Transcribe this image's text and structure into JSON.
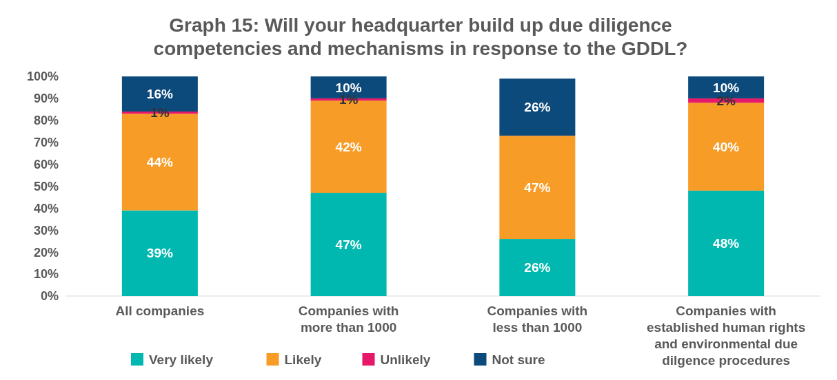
{
  "chart_data": {
    "type": "bar",
    "stacked": true,
    "title": "Graph 15: Will your headquarter build up due diligence competencies and mechanisms in response to the GDDL?",
    "categories": [
      "All companies",
      "Companies with\nmore than 1000",
      "Companies with\nless than 1000",
      "Companies with\nestablished human rights\nand environmental due\ndilgence procedures"
    ],
    "series": [
      {
        "name": "Very likely",
        "color": "#00b8b0",
        "values": [
          39,
          47,
          26,
          48
        ],
        "value_labels": [
          "39%",
          "47%",
          "26%",
          "48%"
        ]
      },
      {
        "name": "Likely",
        "color": "#f89c28",
        "values": [
          44,
          42,
          47,
          40
        ],
        "value_labels": [
          "44%",
          "42%",
          "47%",
          "40%"
        ]
      },
      {
        "name": "Unlikely",
        "color": "#e6186a",
        "values": [
          1,
          1,
          0,
          2
        ],
        "value_labels": [
          "1%",
          "1%",
          null,
          "2%"
        ]
      },
      {
        "name": "Not sure",
        "color": "#0d4a7c",
        "values": [
          16,
          10,
          26,
          10
        ],
        "value_labels": [
          "16%",
          "10%",
          "26%",
          "10%"
        ]
      }
    ],
    "ylim": [
      0,
      100
    ],
    "yticks": [
      {
        "value": 0,
        "label": "0%"
      },
      {
        "value": 10,
        "label": "10%"
      },
      {
        "value": 20,
        "label": "20%"
      },
      {
        "value": 30,
        "label": "30%"
      },
      {
        "value": 40,
        "label": "40%"
      },
      {
        "value": 50,
        "label": "50%"
      },
      {
        "value": 60,
        "label": "60%"
      },
      {
        "value": 70,
        "label": "70%"
      },
      {
        "value": 80,
        "label": "80%"
      },
      {
        "value": 90,
        "label": "90%"
      },
      {
        "value": 100,
        "label": "100%"
      }
    ],
    "grid": false,
    "legend": "bottom left"
  }
}
